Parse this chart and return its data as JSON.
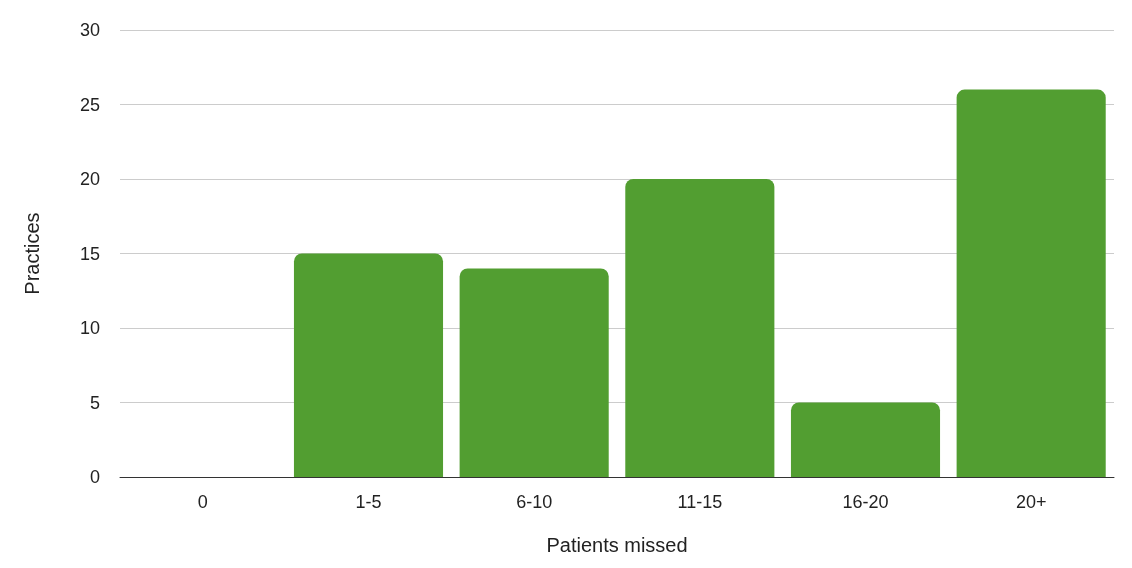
{
  "chart_data": {
    "type": "bar",
    "xlabel": "Patients missed",
    "ylabel": "Practices",
    "categories": [
      "0",
      "1-5",
      "6-10",
      "11-15",
      "16-20",
      "20+"
    ],
    "values": [
      0,
      15,
      14,
      20,
      5,
      26
    ],
    "color": "#529e31",
    "ylim": [
      0,
      30
    ],
    "yticks": [
      0,
      5,
      10,
      15,
      20,
      25,
      30
    ],
    "grid": "y"
  }
}
